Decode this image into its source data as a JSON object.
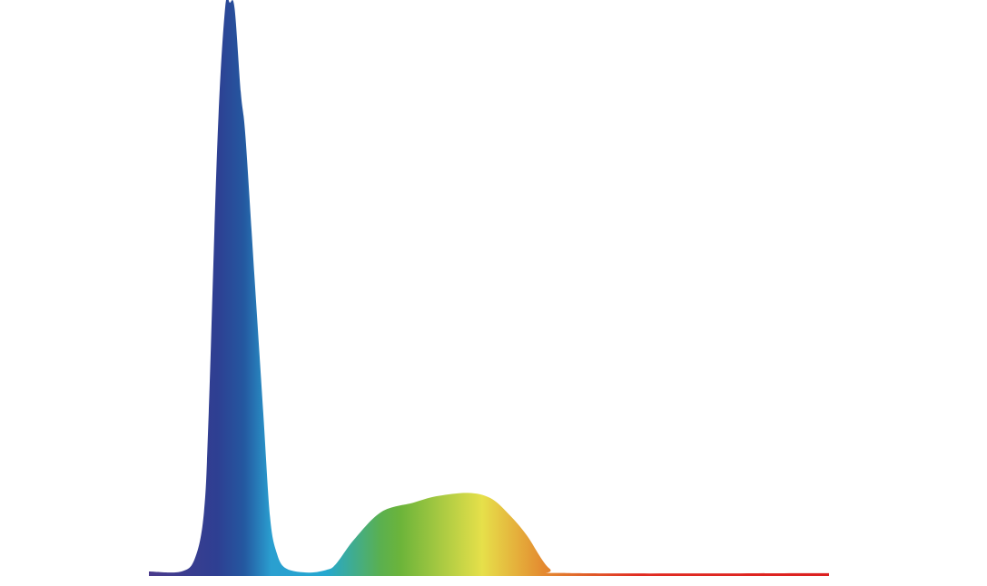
{
  "chart_data": {
    "type": "area",
    "title": "",
    "xlabel": "",
    "ylabel": "",
    "xlim": [
      0,
      100
    ],
    "ylim": [
      0,
      1
    ],
    "grid": false,
    "legend": "none",
    "fill": "spectral-gradient",
    "gradient_colors": [
      "#4a3a8c",
      "#2e3f92",
      "#2458a0",
      "#2a9fd0",
      "#25a8d0",
      "#5ab050",
      "#6cb43a",
      "#e6e04a",
      "#e48a30",
      "#e05a28",
      "#e02a20",
      "#dc2020"
    ],
    "x": [
      0,
      4.8,
      6.8,
      8.1,
      8.8,
      10.1,
      11.2,
      11.9,
      12.6,
      13.5,
      14.2,
      15.5,
      16.8,
      17.8,
      18.8,
      20.2,
      23.5,
      26.2,
      27.5,
      30.2,
      34.2,
      38.9,
      42.2,
      46.9,
      50.2,
      52.9,
      55.5,
      58.9,
      62.2,
      100
    ],
    "y": [
      0.008,
      0.008,
      0.032,
      0.112,
      0.287,
      0.766,
      0.99,
      1.0,
      0.99,
      0.845,
      0.766,
      0.526,
      0.287,
      0.104,
      0.04,
      0.013,
      0.006,
      0.011,
      0.021,
      0.064,
      0.112,
      0.128,
      0.139,
      0.145,
      0.136,
      0.108,
      0.072,
      0.013,
      0.005,
      0.005
    ]
  }
}
